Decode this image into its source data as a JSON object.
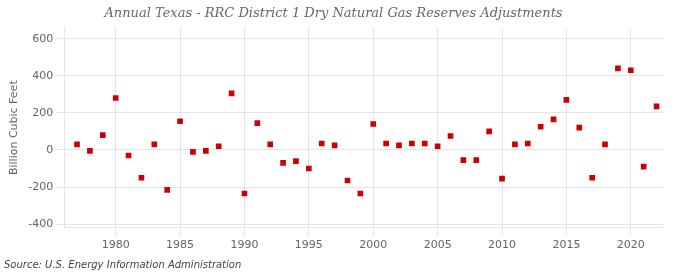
{
  "chart_data": {
    "type": "scatter",
    "title": "Annual Texas - RRC District 1 Dry Natural Gas Reserves Adjustments",
    "ylabel": "Billion Cubic Feet",
    "source": "Source: U.S. Energy Information Administration",
    "x": [
      1977,
      1978,
      1979,
      1980,
      1981,
      1982,
      1983,
      1984,
      1985,
      1986,
      1987,
      1988,
      1989,
      1990,
      1991,
      1992,
      1993,
      1994,
      1995,
      1996,
      1997,
      1998,
      1999,
      2000,
      2001,
      2002,
      2003,
      2004,
      2005,
      2006,
      2007,
      2008,
      2009,
      2010,
      2011,
      2012,
      2013,
      2014,
      2015,
      2016,
      2017,
      2018,
      2019,
      2020,
      2021,
      2022
    ],
    "values": [
      30,
      -5,
      80,
      280,
      -30,
      -150,
      30,
      -215,
      155,
      -10,
      -5,
      20,
      305,
      -235,
      145,
      30,
      -70,
      -60,
      -100,
      35,
      25,
      -165,
      -235,
      140,
      35,
      25,
      35,
      35,
      20,
      75,
      -55,
      -55,
      100,
      -155,
      30,
      35,
      125,
      165,
      270,
      120,
      -150,
      30,
      440,
      430,
      -90,
      235
    ],
    "color": "#cc0000",
    "marker": "square",
    "xlim": [
      1976,
      2022.5
    ],
    "ylim": [
      -420,
      660
    ],
    "xticks": [
      1980,
      1985,
      1990,
      1995,
      2000,
      2005,
      2010,
      2015,
      2020
    ],
    "yticks": [
      -400,
      -200,
      0,
      200,
      400,
      600
    ],
    "grid": true
  }
}
